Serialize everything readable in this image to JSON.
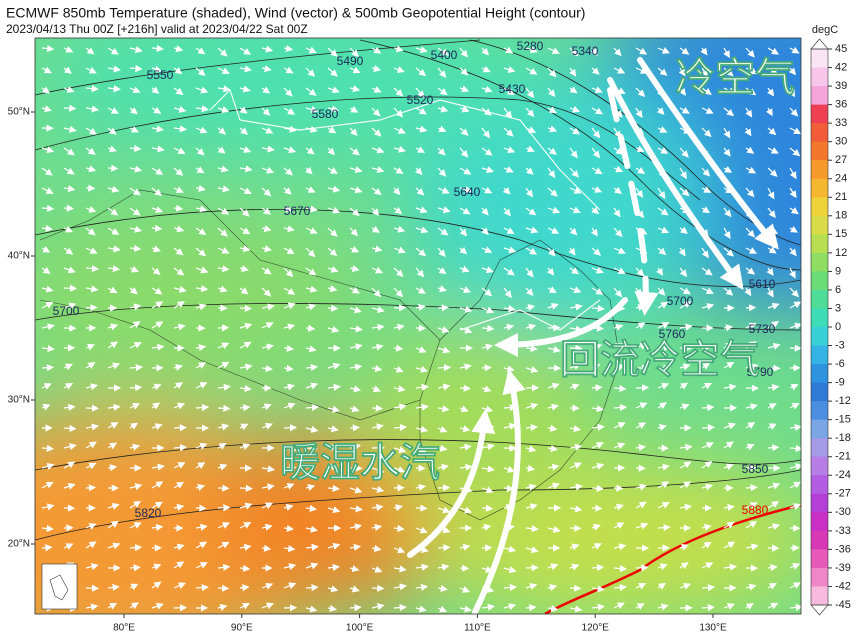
{
  "header": {
    "title": "ECMWF 850mb Temperature (shaded), Wind (vector) & 500mb Geopotential Height (contour)",
    "subtitle": "2023/04/13 Thu 00Z [+216h] valid at 2023/04/22 Sat 00Z"
  },
  "colorbar": {
    "unit": "degC",
    "ticks": [
      45,
      42,
      39,
      36,
      33,
      30,
      27,
      24,
      21,
      18,
      15,
      12,
      9,
      6,
      3,
      0,
      -3,
      -6,
      -9,
      -12,
      -15,
      -18,
      -21,
      -24,
      -27,
      -30,
      -33,
      -36,
      -39,
      -42,
      -45
    ],
    "colors": [
      "#fbe4f4",
      "#f7c6ea",
      "#f4a6dc",
      "#ef3f52",
      "#f25c38",
      "#f4782c",
      "#f69a2c",
      "#f6b730",
      "#eed23a",
      "#d9dc46",
      "#b8de52",
      "#8fdd62",
      "#6bdc78",
      "#4fdc96",
      "#3edcb6",
      "#38cfd6",
      "#34b4e4",
      "#2f94e0",
      "#2e7ad6",
      "#4c8ee0",
      "#7aa6e6",
      "#a49ae6",
      "#b67ee6",
      "#b25ee2",
      "#b43fd8",
      "#c92fc4",
      "#d838b4",
      "#e659b8",
      "#ee86c8",
      "#f7b9dd"
    ]
  },
  "map": {
    "lon_ticks": [
      {
        "value": 80,
        "label": "80°E"
      },
      {
        "value": 90,
        "label": "90°E"
      },
      {
        "value": 100,
        "label": "100°E"
      },
      {
        "value": 110,
        "label": "110°E"
      },
      {
        "value": 120,
        "label": "120°E"
      },
      {
        "value": 130,
        "label": "130°E"
      }
    ],
    "lat_ticks": [
      {
        "value": 20,
        "label": "20°N"
      },
      {
        "value": 30,
        "label": "30°N"
      },
      {
        "value": 40,
        "label": "40°N"
      },
      {
        "value": 50,
        "label": "50°N"
      }
    ],
    "contour_labels": [
      "5280",
      "5340",
      "5400",
      "5490",
      "5550",
      "5520",
      "5430",
      "5580",
      "5640",
      "5670",
      "5700",
      "5700",
      "5610",
      "5760",
      "5730",
      "5790",
      "5850",
      "5880",
      "5820"
    ],
    "annotations": [
      "冷空气",
      "回流冷空气",
      "暖湿水汽"
    ]
  }
}
